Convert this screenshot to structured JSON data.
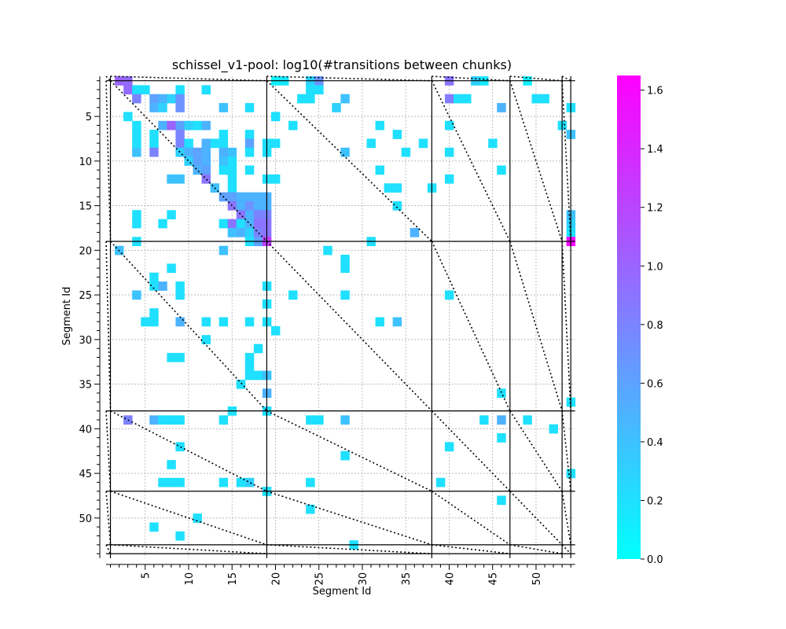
{
  "chart_data": {
    "type": "heatmap",
    "title": "schissel_v1-pool: log10(#transitions between chunks)",
    "xlabel": "Segment Id",
    "ylabel": "Segment Id",
    "x_range": [
      1,
      54
    ],
    "y_range": [
      1,
      54
    ],
    "y_inverted": true,
    "x_ticks": [
      5,
      10,
      15,
      20,
      25,
      30,
      35,
      40,
      45,
      50
    ],
    "y_ticks": [
      5,
      10,
      15,
      20,
      25,
      30,
      35,
      40,
      45,
      50
    ],
    "x_tick_label_rotation": "vertical",
    "grid": true,
    "chunk_boundaries": [
      1,
      19,
      38,
      47,
      53,
      54
    ],
    "colorbar": {
      "colormap": "cool",
      "range": [
        0.0,
        1.65
      ],
      "ticks": [
        "0.0",
        "0.2",
        "0.4",
        "0.6",
        "0.8",
        "1.0",
        "1.2",
        "1.4",
        "1.6"
      ],
      "tick_values": [
        0.0,
        0.2,
        0.4,
        0.6,
        0.8,
        1.0,
        1.2,
        1.4,
        1.6
      ]
    },
    "cells": [
      [
        1,
        2,
        1.0
      ],
      [
        1,
        3,
        0.95
      ],
      [
        1,
        20,
        0.1
      ],
      [
        1,
        21,
        0.15
      ],
      [
        1,
        24,
        0.3
      ],
      [
        1,
        25,
        0.7
      ],
      [
        1,
        40,
        0.9
      ],
      [
        1,
        43,
        0.3
      ],
      [
        1,
        44,
        0.15
      ],
      [
        1,
        49,
        0.1
      ],
      [
        2,
        3,
        0.95
      ],
      [
        2,
        4,
        0.2
      ],
      [
        2,
        5,
        0.2
      ],
      [
        2,
        9,
        0.2
      ],
      [
        2,
        12,
        0.2
      ],
      [
        2,
        24,
        0.2
      ],
      [
        2,
        25,
        0.2
      ],
      [
        3,
        4,
        0.8
      ],
      [
        3,
        6,
        0.6
      ],
      [
        3,
        7,
        0.5
      ],
      [
        3,
        8,
        0.3
      ],
      [
        3,
        9,
        0.7
      ],
      [
        3,
        23,
        0.2
      ],
      [
        3,
        24,
        0.2
      ],
      [
        3,
        28,
        0.4
      ],
      [
        3,
        40,
        0.85
      ],
      [
        3,
        41,
        0.2
      ],
      [
        3,
        42,
        0.2
      ],
      [
        3,
        50,
        0.2
      ],
      [
        3,
        51,
        0.2
      ],
      [
        4,
        6,
        0.5
      ],
      [
        4,
        7,
        0.3
      ],
      [
        4,
        9,
        0.7
      ],
      [
        4,
        14,
        0.4
      ],
      [
        4,
        17,
        0.2
      ],
      [
        4,
        27,
        0.3
      ],
      [
        4,
        46,
        0.5
      ],
      [
        4,
        54,
        0.2
      ],
      [
        5,
        3,
        0.2
      ],
      [
        5,
        20,
        0.2
      ],
      [
        6,
        4,
        0.2
      ],
      [
        6,
        7,
        0.5
      ],
      [
        6,
        8,
        1.0
      ],
      [
        6,
        9,
        0.6
      ],
      [
        6,
        10,
        0.3
      ],
      [
        6,
        11,
        0.2
      ],
      [
        6,
        12,
        0.5
      ],
      [
        6,
        22,
        0.2
      ],
      [
        6,
        32,
        0.2
      ],
      [
        6,
        40,
        0.2
      ],
      [
        6,
        53,
        0.2
      ],
      [
        7,
        4,
        0.2
      ],
      [
        7,
        6,
        0.2
      ],
      [
        7,
        9,
        0.8
      ],
      [
        7,
        14,
        0.2
      ],
      [
        7,
        17,
        0.2
      ],
      [
        7,
        34,
        0.2
      ],
      [
        7,
        54,
        0.4
      ],
      [
        8,
        4,
        0.2
      ],
      [
        8,
        6,
        0.2
      ],
      [
        8,
        9,
        0.8
      ],
      [
        8,
        10,
        0.2
      ],
      [
        8,
        12,
        0.5
      ],
      [
        8,
        13,
        0.2
      ],
      [
        8,
        14,
        0.2
      ],
      [
        8,
        17,
        0.6
      ],
      [
        8,
        19,
        0.2
      ],
      [
        8,
        20,
        0.2
      ],
      [
        8,
        31,
        0.2
      ],
      [
        8,
        37,
        0.2
      ],
      [
        8,
        45,
        0.2
      ],
      [
        9,
        4,
        0.4
      ],
      [
        9,
        6,
        0.8
      ],
      [
        9,
        9,
        0.3
      ],
      [
        9,
        10,
        0.5
      ],
      [
        9,
        11,
        0.6
      ],
      [
        9,
        12,
        0.5
      ],
      [
        9,
        14,
        0.5
      ],
      [
        9,
        15,
        0.4
      ],
      [
        9,
        17,
        0.2
      ],
      [
        9,
        19,
        0.2
      ],
      [
        9,
        28,
        0.4
      ],
      [
        9,
        35,
        0.2
      ],
      [
        9,
        40,
        0.2
      ],
      [
        10,
        10,
        0.3
      ],
      [
        10,
        11,
        0.6
      ],
      [
        10,
        12,
        0.5
      ],
      [
        10,
        14,
        0.4
      ],
      [
        10,
        15,
        0.2
      ],
      [
        11,
        11,
        0.5
      ],
      [
        11,
        12,
        0.6
      ],
      [
        11,
        14,
        0.2
      ],
      [
        11,
        15,
        0.2
      ],
      [
        11,
        17,
        0.2
      ],
      [
        11,
        32,
        0.2
      ],
      [
        11,
        46,
        0.2
      ],
      [
        12,
        8,
        0.4
      ],
      [
        12,
        9,
        0.4
      ],
      [
        12,
        12,
        0.9
      ],
      [
        12,
        15,
        0.2
      ],
      [
        12,
        19,
        0.2
      ],
      [
        12,
        20,
        0.2
      ],
      [
        12,
        40,
        0.2
      ],
      [
        13,
        13,
        0.4
      ],
      [
        13,
        15,
        0.2
      ],
      [
        13,
        33,
        0.2
      ],
      [
        13,
        34,
        0.2
      ],
      [
        13,
        38,
        0.2
      ],
      [
        14,
        14,
        0.6
      ],
      [
        14,
        15,
        0.6
      ],
      [
        14,
        16,
        0.5
      ],
      [
        14,
        17,
        0.5
      ],
      [
        14,
        18,
        0.5
      ],
      [
        14,
        19,
        0.5
      ],
      [
        15,
        15,
        0.9
      ],
      [
        15,
        16,
        0.5
      ],
      [
        15,
        17,
        0.7
      ],
      [
        15,
        18,
        0.5
      ],
      [
        15,
        19,
        0.5
      ],
      [
        15,
        34,
        0.2
      ],
      [
        16,
        4,
        0.2
      ],
      [
        16,
        8,
        0.2
      ],
      [
        16,
        16,
        0.9
      ],
      [
        16,
        17,
        0.5
      ],
      [
        16,
        18,
        0.8
      ],
      [
        16,
        19,
        0.8
      ],
      [
        16,
        54,
        0.4
      ],
      [
        17,
        4,
        0.2
      ],
      [
        17,
        7,
        0.2
      ],
      [
        17,
        14,
        0.2
      ],
      [
        17,
        15,
        0.9
      ],
      [
        17,
        16,
        0.2
      ],
      [
        17,
        17,
        0.5
      ],
      [
        17,
        18,
        0.9
      ],
      [
        17,
        19,
        0.9
      ],
      [
        17,
        54,
        0.3
      ],
      [
        18,
        15,
        0.4
      ],
      [
        18,
        16,
        0.5
      ],
      [
        18,
        17,
        0.3
      ],
      [
        18,
        18,
        0.8
      ],
      [
        18,
        19,
        0.9
      ],
      [
        18,
        36,
        0.5
      ],
      [
        18,
        54,
        0.2
      ],
      [
        19,
        4,
        0.2
      ],
      [
        19,
        17,
        0.2
      ],
      [
        19,
        18,
        0.6
      ],
      [
        19,
        19,
        1.25
      ],
      [
        19,
        31,
        0.2
      ],
      [
        19,
        54,
        1.6
      ],
      [
        20,
        2,
        0.4
      ],
      [
        20,
        14,
        0.4
      ],
      [
        20,
        26,
        0.2
      ],
      [
        21,
        28,
        0.2
      ],
      [
        22,
        8,
        0.2
      ],
      [
        22,
        28,
        0.2
      ],
      [
        23,
        6,
        0.2
      ],
      [
        24,
        6,
        0.2
      ],
      [
        24,
        7,
        0.5
      ],
      [
        24,
        9,
        0.2
      ],
      [
        24,
        19,
        0.2
      ],
      [
        25,
        4,
        0.4
      ],
      [
        25,
        9,
        0.2
      ],
      [
        25,
        22,
        0.2
      ],
      [
        25,
        28,
        0.2
      ],
      [
        25,
        40,
        0.2
      ],
      [
        26,
        19,
        0.2
      ],
      [
        27,
        6,
        0.2
      ],
      [
        28,
        5,
        0.2
      ],
      [
        28,
        6,
        0.2
      ],
      [
        28,
        9,
        0.5
      ],
      [
        28,
        12,
        0.2
      ],
      [
        28,
        14,
        0.2
      ],
      [
        28,
        17,
        0.2
      ],
      [
        28,
        19,
        0.2
      ],
      [
        28,
        32,
        0.2
      ],
      [
        28,
        34,
        0.4
      ],
      [
        29,
        20,
        0.2
      ],
      [
        30,
        12,
        0.2
      ],
      [
        31,
        18,
        0.2
      ],
      [
        32,
        8,
        0.2
      ],
      [
        32,
        9,
        0.2
      ],
      [
        32,
        17,
        0.2
      ],
      [
        33,
        17,
        0.2
      ],
      [
        34,
        17,
        0.2
      ],
      [
        34,
        18,
        0.2
      ],
      [
        34,
        19,
        0.4
      ],
      [
        35,
        16,
        0.2
      ],
      [
        36,
        19,
        0.5
      ],
      [
        36,
        46,
        0.2
      ],
      [
        37,
        54,
        0.2
      ],
      [
        38,
        15,
        0.2
      ],
      [
        38,
        19,
        0.2
      ],
      [
        39,
        3,
        0.8
      ],
      [
        39,
        6,
        0.5
      ],
      [
        39,
        7,
        0.2
      ],
      [
        39,
        8,
        0.2
      ],
      [
        39,
        9,
        0.2
      ],
      [
        39,
        14,
        0.2
      ],
      [
        39,
        24,
        0.2
      ],
      [
        39,
        25,
        0.2
      ],
      [
        39,
        28,
        0.4
      ],
      [
        39,
        44,
        0.2
      ],
      [
        39,
        46,
        0.5
      ],
      [
        39,
        49,
        0.2
      ],
      [
        40,
        52,
        0.2
      ],
      [
        41,
        46,
        0.2
      ],
      [
        42,
        9,
        0.2
      ],
      [
        42,
        40,
        0.2
      ],
      [
        43,
        28,
        0.2
      ],
      [
        44,
        8,
        0.2
      ],
      [
        45,
        54,
        0.2
      ],
      [
        46,
        7,
        0.2
      ],
      [
        46,
        8,
        0.2
      ],
      [
        46,
        9,
        0.2
      ],
      [
        46,
        14,
        0.2
      ],
      [
        46,
        16,
        0.2
      ],
      [
        46,
        17,
        0.3
      ],
      [
        46,
        24,
        0.2
      ],
      [
        46,
        39,
        0.2
      ],
      [
        47,
        19,
        0.2
      ],
      [
        48,
        46,
        0.2
      ],
      [
        49,
        24,
        0.2
      ],
      [
        50,
        11,
        0.2
      ],
      [
        51,
        6,
        0.2
      ],
      [
        52,
        9,
        0.2
      ],
      [
        53,
        29,
        0.2
      ]
    ]
  }
}
